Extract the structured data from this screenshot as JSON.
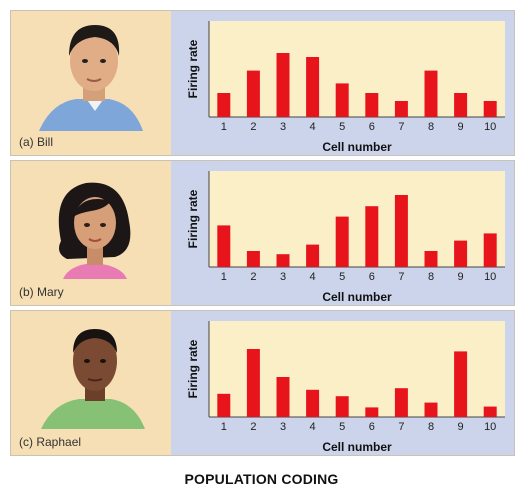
{
  "footer_title": "POPULATION CODING",
  "colors": {
    "bar": "#e8141b",
    "plot_bg": "#fbefc8",
    "panel_bg": "#ccd4ec",
    "portrait_bg": "#f6dfb4"
  },
  "portraits": [
    {
      "caption": "(a) Bill",
      "icon": "man-face-blue-shirt-icon"
    },
    {
      "caption": "(b) Mary",
      "icon": "woman-face-pink-top-icon"
    },
    {
      "caption": "(c) Raphael",
      "icon": "man-face-green-shirt-icon"
    }
  ],
  "chart_data": [
    {
      "type": "bar",
      "title": "",
      "xlabel": "Cell number",
      "ylabel": "Firing rate",
      "categories": [
        "1",
        "2",
        "3",
        "4",
        "5",
        "6",
        "7",
        "8",
        "9",
        "10"
      ],
      "values": [
        3.0,
        5.8,
        8.0,
        7.5,
        4.2,
        3.0,
        2.0,
        5.8,
        3.0,
        2.0
      ],
      "ylim": [
        0,
        12
      ],
      "grid": false
    },
    {
      "type": "bar",
      "title": "",
      "xlabel": "Cell number",
      "ylabel": "Firing rate",
      "categories": [
        "1",
        "2",
        "3",
        "4",
        "5",
        "6",
        "7",
        "8",
        "9",
        "10"
      ],
      "values": [
        5.2,
        2.0,
        1.6,
        2.8,
        6.3,
        7.6,
        9.0,
        2.0,
        3.3,
        4.2
      ],
      "ylim": [
        0,
        12
      ],
      "grid": false
    },
    {
      "type": "bar",
      "title": "",
      "xlabel": "Cell number",
      "ylabel": "Firing rate",
      "categories": [
        "1",
        "2",
        "3",
        "4",
        "5",
        "6",
        "7",
        "8",
        "9",
        "10"
      ],
      "values": [
        2.9,
        8.5,
        5.0,
        3.4,
        2.6,
        1.2,
        3.6,
        1.8,
        8.2,
        1.3
      ],
      "ylim": [
        0,
        12
      ],
      "grid": false
    }
  ]
}
